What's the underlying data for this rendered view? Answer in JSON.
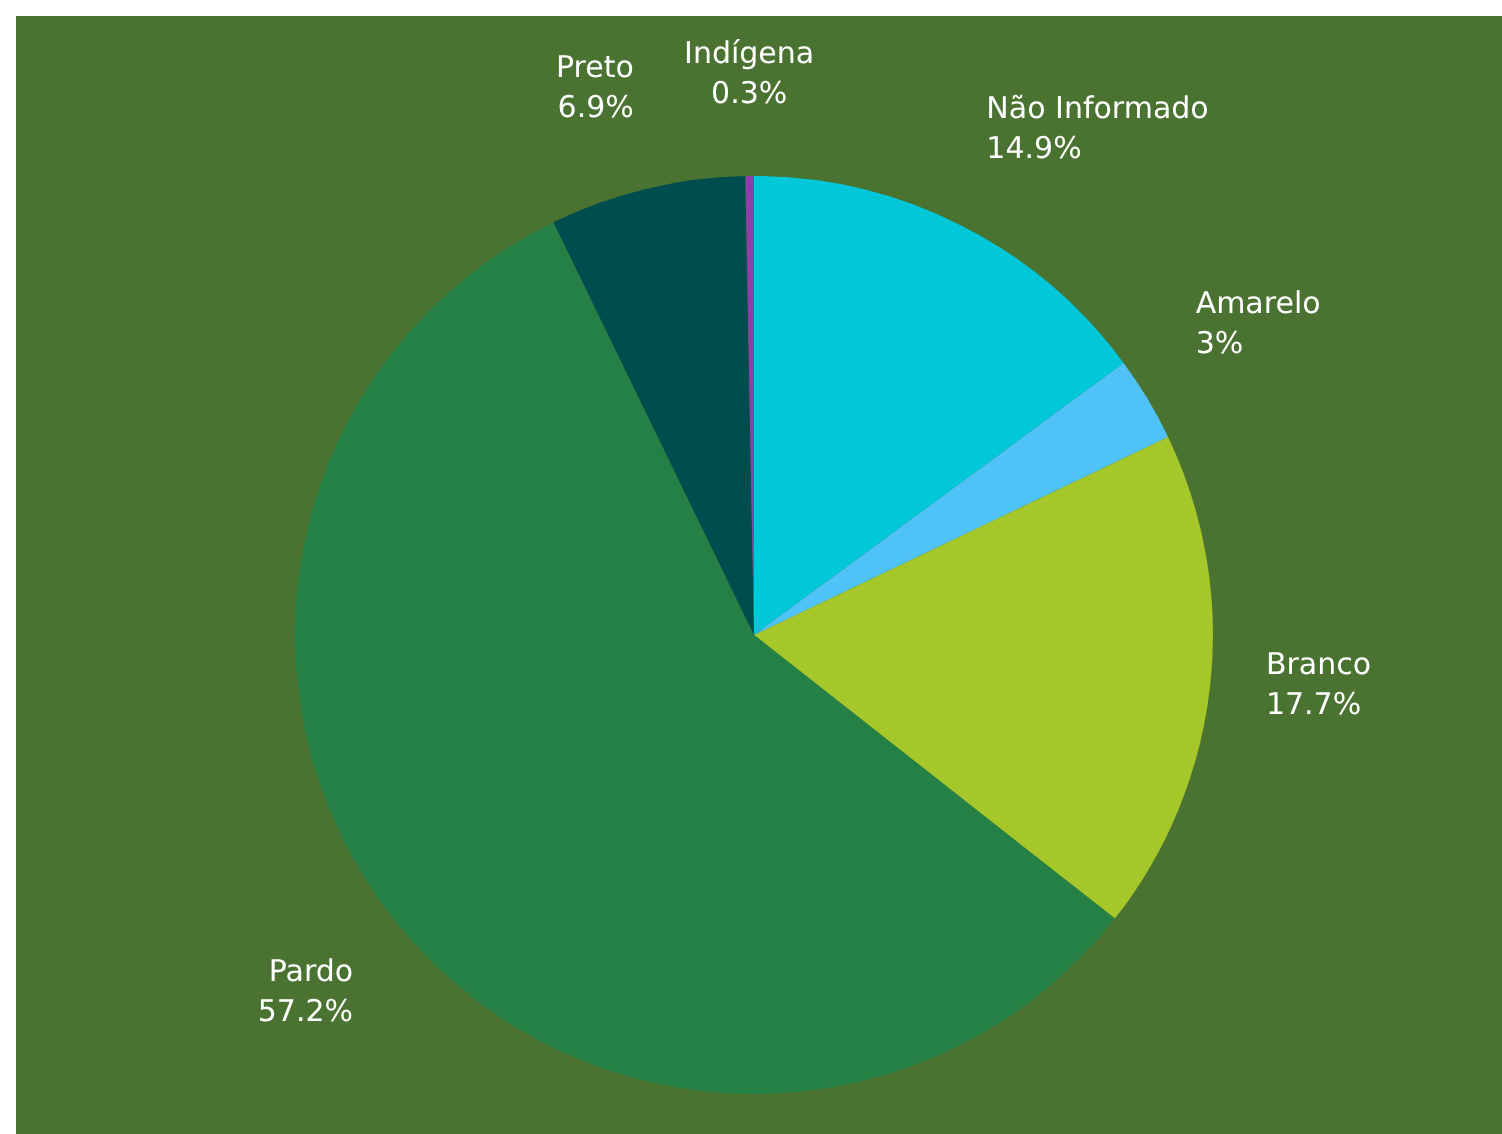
{
  "chart_data": {
    "type": "pie",
    "categories": [
      "Não Informado",
      "Amarelo",
      "Branco",
      "Pardo",
      "Preto",
      "Indígena"
    ],
    "values": [
      14.9,
      3,
      17.7,
      57.2,
      6.9,
      0.3
    ],
    "value_labels": [
      "14.9%",
      "3%",
      "17.7%",
      "57.2%",
      "6.9%",
      "0.3%"
    ],
    "colors": [
      "#00c8d8",
      "#4fc3f7",
      "#a5c72a",
      "#258046",
      "#004d50",
      "#8e3fa8"
    ],
    "legend": false
  }
}
